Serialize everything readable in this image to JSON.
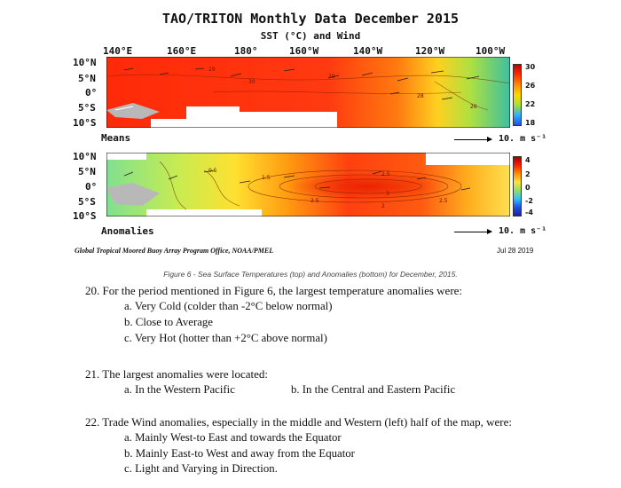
{
  "figure": {
    "title": "TAO/TRITON Monthly Data December 2015",
    "subtitle": "SST (°C) and Wind",
    "longitudes": [
      "140°E",
      "160°E",
      "180°",
      "160°W",
      "140°W",
      "120°W",
      "100°W"
    ],
    "latitudes": [
      "10°N",
      "5°N",
      "0°",
      "5°S",
      "10°S"
    ],
    "means": {
      "label": "Means",
      "wind_scale": "10. m s⁻¹",
      "colorbar_ticks": [
        "30",
        "26",
        "22",
        "18"
      ],
      "contour_labels": [
        "29",
        "30",
        "29",
        "28",
        "26"
      ]
    },
    "anomalies": {
      "label": "Anomalies",
      "wind_scale": "10. m s⁻¹",
      "colorbar_ticks": [
        "4",
        "2",
        "0",
        "-2",
        "-4"
      ],
      "contour_labels": [
        "0.5",
        "1.5",
        "2.5",
        "2.5",
        "3",
        "2",
        "2.5"
      ]
    },
    "footer_program": "Global Tropical Moored Buoy Array Program Office, NOAA/PMEL",
    "footer_date": "Jul 28 2019",
    "caption": "Figure 6 - Sea Surface Temperatures (top) and Anomalies (bottom) for December, 2015.",
    "colors": {
      "warm": "#e8200c",
      "cool": "#30a8f0",
      "neutral": "#a8e040"
    }
  },
  "questions": [
    {
      "text": "20. For the period mentioned in Figure 6, the largest temperature anomalies were:",
      "options": [
        "a.  Very Cold (colder than -2°C below normal)",
        "b.  Close to Average",
        "c.  Very Hot (hotter than +2°C above normal)"
      ]
    },
    {
      "text": "21. The largest anomalies were located:",
      "options": [
        "a.  In the Western Pacific",
        "b. In the Central and Eastern Pacific"
      ]
    },
    {
      "text": "22. Trade Wind anomalies, especially in the middle and Western (left) half of the map, were:",
      "options": [
        "a.  Mainly West-to East and towards the Equator",
        "b.  Mainly East-to West and away from the Equator",
        "c.  Light and Varying in Direction."
      ]
    }
  ]
}
